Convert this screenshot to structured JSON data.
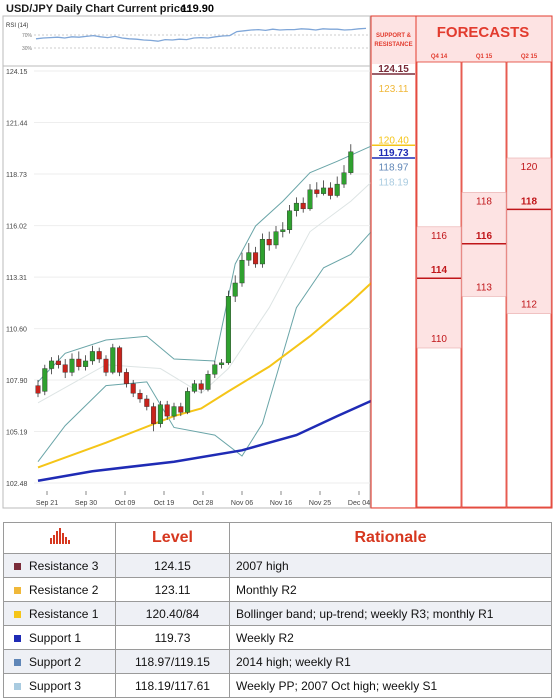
{
  "header": {
    "title": "USD/JPY Daily Chart",
    "price_label": "Current price:",
    "price_value": "119.90"
  },
  "rsi": {
    "label": "RSI (14)",
    "levels": [
      "70%",
      "30%"
    ]
  },
  "sr_header": {
    "line1": "SUPPORT &",
    "line2": "RESISTANCE"
  },
  "forecasts_title": "FORECASTS",
  "colors": {
    "accent": "#e23b2e",
    "resistance3": "#7a2d3a",
    "resistance2": "#f0b83a",
    "resistance1": "#f5c518",
    "support1": "#1f2bb5",
    "support2": "#5f86b7",
    "support3": "#a9cbe0",
    "panel_bg": "#fde3e3",
    "ma_yellow": "#f5c518",
    "ma_blue": "#1f2bb5",
    "band": "#6aa5a8",
    "up_candle": "#2fa12f",
    "down_candle": "#c8231c"
  },
  "chart_data": {
    "type": "candlestick",
    "title": "USD/JPY Daily Chart",
    "y_ticks": [
      "124.15",
      "121.44",
      "118.73",
      "116.02",
      "113.31",
      "110.60",
      "107.90",
      "105.19",
      "102.48"
    ],
    "ylim": [
      102.48,
      124.15
    ],
    "x_ticks": [
      "Sep 21",
      "Sep 30",
      "Oct 09",
      "Oct 19",
      "Oct 28",
      "Nov 06",
      "Nov 16",
      "Nov 25",
      "Dec 04"
    ],
    "candles": [
      [
        107.6,
        107.2,
        107.9,
        107.0
      ],
      [
        107.3,
        108.5,
        108.7,
        107.1
      ],
      [
        108.5,
        108.9,
        109.1,
        108.2
      ],
      [
        108.9,
        108.7,
        109.2,
        108.5
      ],
      [
        108.7,
        108.3,
        109.0,
        108.0
      ],
      [
        108.3,
        109.0,
        109.3,
        108.1
      ],
      [
        109.0,
        108.6,
        109.4,
        108.4
      ],
      [
        108.6,
        108.9,
        109.2,
        108.4
      ],
      [
        108.9,
        109.4,
        109.7,
        108.7
      ],
      [
        109.4,
        109.0,
        109.6,
        108.8
      ],
      [
        109.0,
        108.3,
        109.2,
        108.1
      ],
      [
        108.3,
        109.6,
        109.8,
        108.2
      ],
      [
        109.6,
        108.3,
        109.7,
        108.1
      ],
      [
        108.3,
        107.7,
        108.5,
        107.5
      ],
      [
        107.7,
        107.2,
        107.9,
        107.0
      ],
      [
        107.2,
        106.9,
        107.4,
        106.7
      ],
      [
        106.9,
        106.5,
        107.1,
        106.3
      ],
      [
        106.5,
        105.6,
        106.7,
        105.2
      ],
      [
        105.6,
        106.6,
        106.8,
        105.4
      ],
      [
        106.6,
        106.0,
        106.8,
        105.8
      ],
      [
        106.0,
        106.5,
        106.7,
        105.8
      ],
      [
        106.5,
        106.2,
        106.7,
        106.0
      ],
      [
        106.2,
        107.3,
        107.5,
        106.1
      ],
      [
        107.3,
        107.7,
        107.9,
        107.2
      ],
      [
        107.7,
        107.4,
        107.9,
        107.2
      ],
      [
        107.4,
        108.2,
        108.4,
        107.3
      ],
      [
        108.2,
        108.7,
        108.9,
        108.0
      ],
      [
        108.7,
        108.8,
        109.0,
        108.5
      ],
      [
        108.8,
        112.3,
        112.6,
        108.7
      ],
      [
        112.3,
        113.0,
        113.4,
        112.0
      ],
      [
        113.0,
        114.2,
        114.6,
        112.8
      ],
      [
        114.2,
        114.6,
        115.1,
        113.9
      ],
      [
        114.6,
        114.0,
        114.9,
        113.8
      ],
      [
        114.0,
        115.3,
        115.6,
        113.8
      ],
      [
        115.3,
        115.0,
        115.7,
        114.7
      ],
      [
        115.0,
        115.7,
        116.0,
        114.8
      ],
      [
        115.7,
        115.8,
        116.2,
        115.4
      ],
      [
        115.8,
        116.8,
        117.1,
        115.6
      ],
      [
        116.8,
        117.2,
        117.5,
        116.5
      ],
      [
        117.2,
        116.9,
        117.5,
        116.7
      ],
      [
        116.9,
        117.9,
        118.2,
        116.8
      ],
      [
        117.9,
        117.7,
        118.3,
        117.5
      ],
      [
        117.7,
        118.0,
        118.4,
        117.6
      ],
      [
        118.0,
        117.6,
        118.3,
        117.4
      ],
      [
        117.6,
        118.2,
        118.6,
        117.5
      ],
      [
        118.2,
        118.8,
        119.2,
        118.0
      ],
      [
        118.8,
        119.9,
        120.3,
        118.7
      ]
    ],
    "ma_yellow": [
      [
        0,
        103.3
      ],
      [
        10,
        104.6
      ],
      [
        20,
        106.0
      ],
      [
        24,
        106.4
      ],
      [
        28,
        107.3
      ],
      [
        34,
        108.6
      ],
      [
        40,
        110.2
      ],
      [
        46,
        112.0
      ],
      [
        49,
        113.0
      ]
    ],
    "ma_blue": [
      [
        0,
        102.6
      ],
      [
        8,
        103.1
      ],
      [
        20,
        103.6
      ],
      [
        30,
        104.2
      ],
      [
        38,
        105.0
      ],
      [
        44,
        106.0
      ],
      [
        49,
        106.8
      ]
    ],
    "band_upper": [
      [
        0,
        107.8
      ],
      [
        4,
        109.3
      ],
      [
        10,
        110.0
      ],
      [
        16,
        110.2
      ],
      [
        20,
        109.0
      ],
      [
        26,
        108.9
      ],
      [
        29,
        114.0
      ],
      [
        32,
        116.0
      ],
      [
        36,
        117.3
      ],
      [
        40,
        118.8
      ],
      [
        44,
        119.4
      ],
      [
        49,
        120.2
      ]
    ],
    "band_lower": [
      [
        0,
        103.6
      ],
      [
        4,
        105.5
      ],
      [
        10,
        107.6
      ],
      [
        16,
        107.8
      ],
      [
        20,
        105.4
      ],
      [
        26,
        105.0
      ],
      [
        30,
        103.9
      ],
      [
        33,
        105.6
      ],
      [
        38,
        111.7
      ],
      [
        42,
        113.8
      ],
      [
        46,
        114.5
      ],
      [
        49,
        115.7
      ]
    ],
    "band_mid": [
      [
        0,
        106.7
      ],
      [
        10,
        108.7
      ],
      [
        18,
        108.5
      ],
      [
        24,
        107.2
      ],
      [
        28,
        108.5
      ],
      [
        34,
        111.7
      ],
      [
        40,
        115.7
      ],
      [
        46,
        117.3
      ],
      [
        49,
        118.3
      ]
    ],
    "rsi_values": [
      58,
      60,
      61,
      62,
      60,
      63,
      62,
      64,
      66,
      63,
      61,
      64,
      60,
      58,
      57,
      55,
      54,
      52,
      56,
      55,
      57,
      56,
      60,
      61,
      60,
      63,
      65,
      66,
      76,
      78,
      80,
      81,
      79,
      82,
      80,
      81,
      81,
      83,
      82,
      80,
      83,
      82,
      82,
      80,
      81,
      83,
      84
    ],
    "support_resistance": [
      {
        "label": "124.15",
        "value": 124.15
      },
      {
        "label": "123.11",
        "value": 123.11
      },
      {
        "label": "120.40",
        "value": 120.4
      },
      {
        "label": "119.73",
        "value": 119.73
      },
      {
        "label": "118.97",
        "value": 118.97
      },
      {
        "label": "118.19",
        "value": 118.19
      }
    ],
    "forecasts": [
      {
        "period": "Q4 14",
        "high": 116,
        "mid": 114,
        "low": 110
      },
      {
        "period": "Q1 15",
        "high": 118,
        "mid": 116,
        "low": 113
      },
      {
        "period": "Q2 15",
        "high": 120,
        "mid": 118,
        "low": 112
      }
    ]
  },
  "table": {
    "headers": [
      "Level",
      "Rationale"
    ],
    "rows": [
      {
        "name": "Resistance 3",
        "level": "124.15",
        "rationale": "2007 high",
        "color": "#7a2d3a"
      },
      {
        "name": "Resistance 2",
        "level": "123.11",
        "rationale": "Monthly R2",
        "color": "#f0b83a"
      },
      {
        "name": "Resistance 1",
        "level": "120.40/84",
        "rationale": "Bollinger band; up-trend; weekly R3; monthly R1",
        "color": "#f5c518"
      },
      {
        "name": "Support 1",
        "level": "119.73",
        "rationale": "Weekly R2",
        "color": "#1f2bb5"
      },
      {
        "name": "Support 2",
        "level": "118.97/119.15",
        "rationale": "2014 high; weekly R1",
        "color": "#5f86b7"
      },
      {
        "name": "Support 3",
        "level": "118.19/117.61",
        "rationale": "Weekly PP; 2007 Oct high; weekly S1",
        "color": "#a9cbe0"
      }
    ]
  }
}
